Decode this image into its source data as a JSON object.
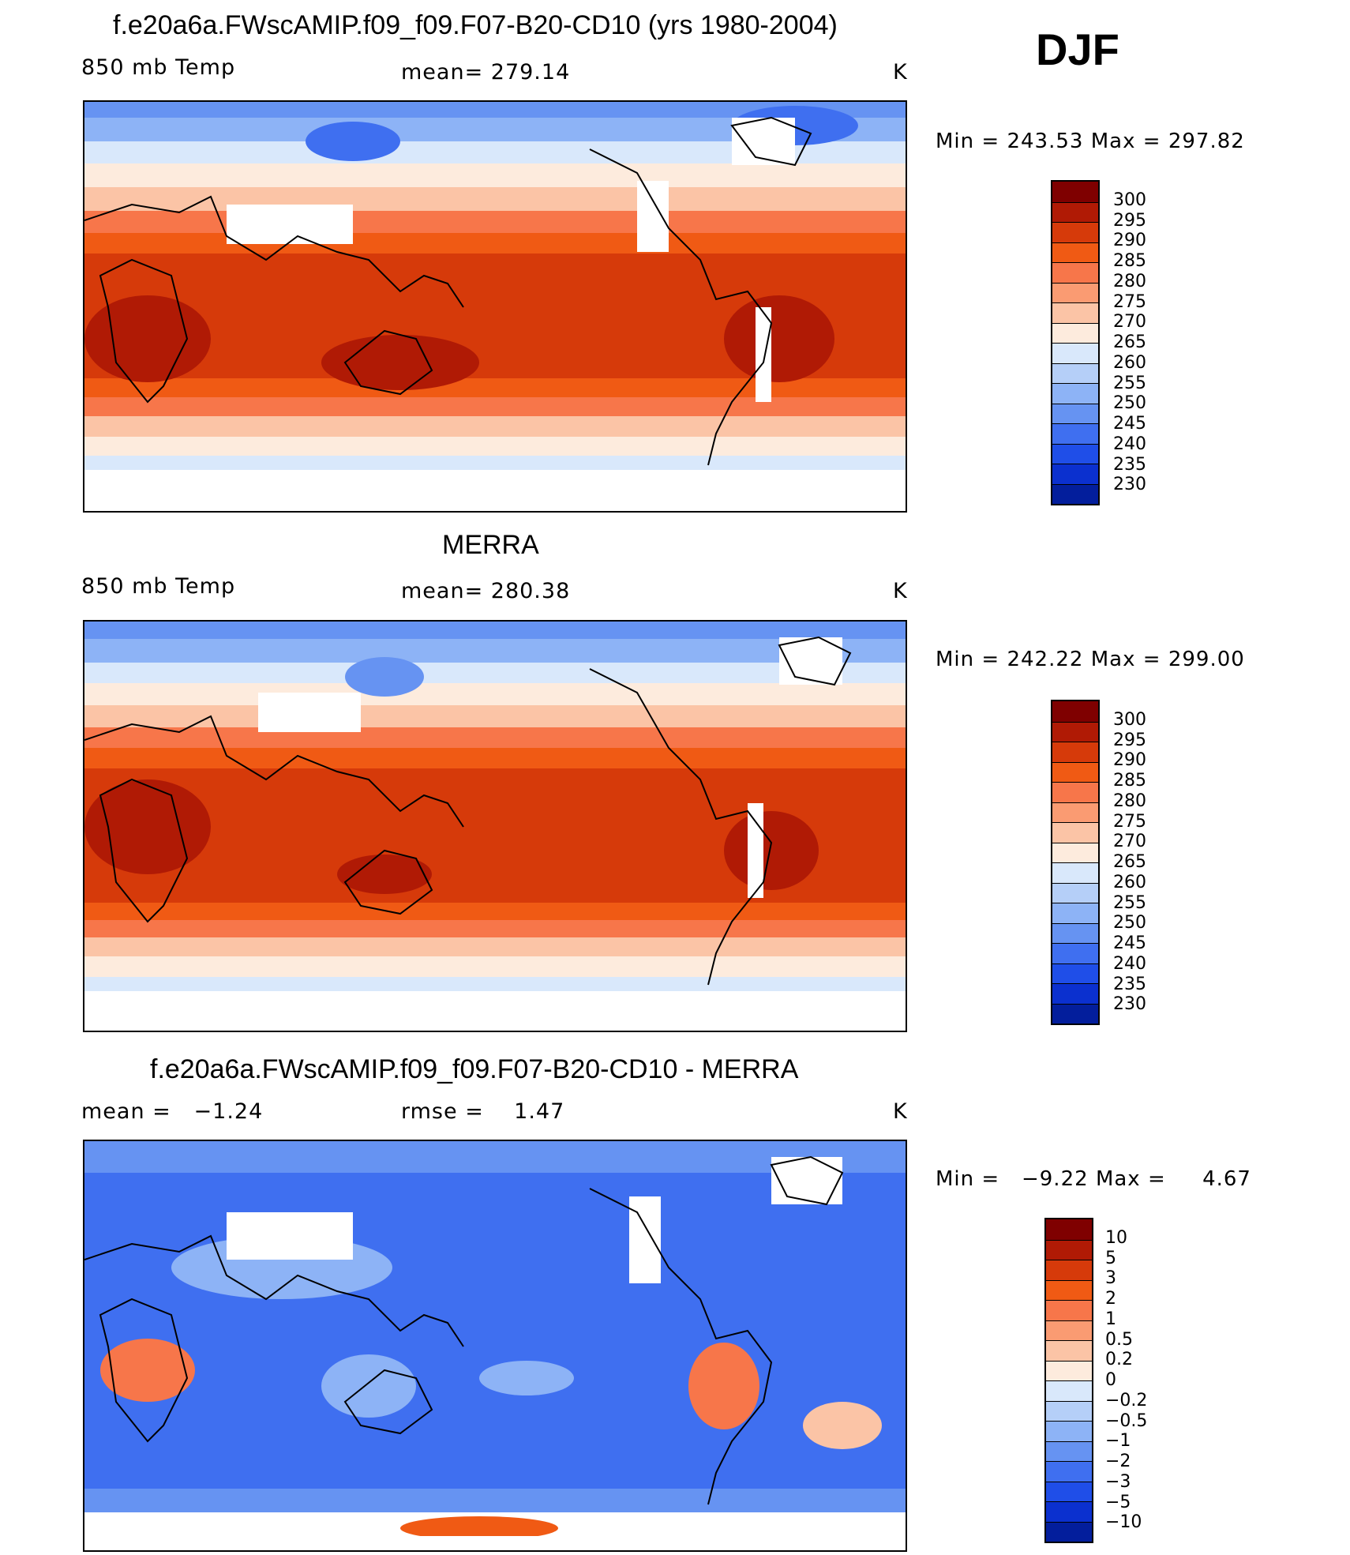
{
  "season": "DJF",
  "colors": {
    "abs_scale": [
      "#7f0000",
      "#b01a05",
      "#d63a0a",
      "#f05a14",
      "#f7764a",
      "#fa9b72",
      "#fbc4a6",
      "#fdebdd",
      "#d9e8fb",
      "#b5cff8",
      "#8db3f6",
      "#6693f2",
      "#3f6ff0",
      "#1f4ee8",
      "#0b30cf",
      "#031e9c"
    ],
    "diff_scale": [
      "#7f0000",
      "#b01a05",
      "#d63a0a",
      "#f05a14",
      "#f7764a",
      "#fa9b72",
      "#fbc4a6",
      "#fdebdd",
      "#d9e8fb",
      "#b5cff8",
      "#8db3f6",
      "#6693f2",
      "#3f6ff0",
      "#1f4ee8",
      "#0b30cf",
      "#031e9c"
    ]
  },
  "panels": [
    {
      "id": "model",
      "title": "f.e20a6a.FWscAMIP.f09_f09.F07-B20-CD10 (yrs 1980-2004)",
      "left_label": "850 mb Temp",
      "center_label": "mean= 279.14",
      "units": "K",
      "min_label": "Min",
      "min_value": "243.53",
      "max_label": "Max",
      "max_value": "297.82",
      "colorbar_labels": [
        "300",
        "295",
        "290",
        "285",
        "280",
        "275",
        "270",
        "265",
        "260",
        "255",
        "250",
        "245",
        "240",
        "235",
        "230"
      ]
    },
    {
      "id": "obs",
      "title": "MERRA",
      "left_label": "850 mb Temp",
      "center_label": "mean= 280.38",
      "units": "K",
      "min_label": "Min",
      "min_value": "242.22",
      "max_label": "Max",
      "max_value": "299.00",
      "colorbar_labels": [
        "300",
        "295",
        "290",
        "285",
        "280",
        "275",
        "270",
        "265",
        "260",
        "255",
        "250",
        "245",
        "240",
        "235",
        "230"
      ]
    },
    {
      "id": "diff",
      "title": "f.e20a6a.FWscAMIP.f09_f09.F07-B20-CD10 - MERRA",
      "left_label": "mean =",
      "left_value": "−1.24",
      "center_label": "rmse =",
      "center_value": "1.47",
      "units": "K",
      "min_label": "Min",
      "min_value": "−9.22",
      "max_label": "Max",
      "max_value": "4.67",
      "colorbar_labels": [
        "10",
        "5",
        "3",
        "2",
        "1",
        "0.5",
        "0.2",
        "0",
        "−0.2",
        "−0.5",
        "−1",
        "−2",
        "−3",
        "−5",
        "−10"
      ]
    }
  ]
}
